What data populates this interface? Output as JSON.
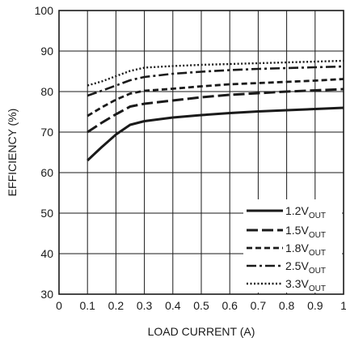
{
  "chart_data": {
    "type": "line",
    "title": "",
    "xlabel": "LOAD CURRENT (A)",
    "ylabel": "EFFICIENCY (%)",
    "xlim": [
      0,
      1
    ],
    "ylim": [
      30,
      100
    ],
    "xticks": [
      "0",
      "0.1",
      "0.2",
      "0.3",
      "0.4",
      "0.5",
      "0.6",
      "0.7",
      "0.8",
      "0.9",
      "1"
    ],
    "yticks": [
      "30",
      "40",
      "50",
      "60",
      "70",
      "80",
      "90",
      "100"
    ],
    "grid": true,
    "legend_position": "bottom-right",
    "series": [
      {
        "name": "1.2V",
        "name_sub": "OUT",
        "dash": "solid",
        "x": [
          0.1,
          0.15,
          0.2,
          0.25,
          0.3,
          0.4,
          0.5,
          0.6,
          0.7,
          0.8,
          0.9,
          1.0
        ],
        "y": [
          63,
          66.3,
          69.4,
          71.8,
          72.7,
          73.6,
          74.2,
          74.7,
          75.1,
          75.4,
          75.7,
          76.0
        ]
      },
      {
        "name": "1.5V",
        "name_sub": "OUT",
        "dash": "long",
        "x": [
          0.1,
          0.15,
          0.2,
          0.25,
          0.3,
          0.4,
          0.5,
          0.6,
          0.7,
          0.8,
          0.9,
          1.0
        ],
        "y": [
          70,
          72.3,
          74.4,
          76.3,
          77,
          77.8,
          78.6,
          79.2,
          79.6,
          80.0,
          80.3,
          80.6
        ]
      },
      {
        "name": "1.8V",
        "name_sub": "OUT",
        "dash": "short",
        "x": [
          0.1,
          0.15,
          0.2,
          0.25,
          0.3,
          0.4,
          0.5,
          0.6,
          0.7,
          0.8,
          0.9,
          1.0
        ],
        "y": [
          74,
          76.1,
          78,
          79.5,
          80.2,
          80.7,
          81.3,
          81.8,
          82.1,
          82.4,
          82.7,
          83.1
        ]
      },
      {
        "name": "2.5V",
        "name_sub": "OUT",
        "dash": "dashdot",
        "x": [
          0.1,
          0.15,
          0.2,
          0.25,
          0.3,
          0.4,
          0.5,
          0.6,
          0.7,
          0.8,
          0.9,
          1.0
        ],
        "y": [
          79,
          80.2,
          81.5,
          82.8,
          83.6,
          84.4,
          84.9,
          85.3,
          85.6,
          85.8,
          86.0,
          86.2
        ]
      },
      {
        "name": "3.3V",
        "name_sub": "OUT",
        "dash": "dotted",
        "x": [
          0.1,
          0.15,
          0.2,
          0.25,
          0.3,
          0.4,
          0.5,
          0.6,
          0.7,
          0.8,
          0.9,
          1.0
        ],
        "y": [
          81.5,
          82.5,
          83.8,
          85.1,
          85.9,
          86.3,
          86.6,
          86.8,
          87.0,
          87.2,
          87.4,
          87.6
        ]
      }
    ]
  }
}
